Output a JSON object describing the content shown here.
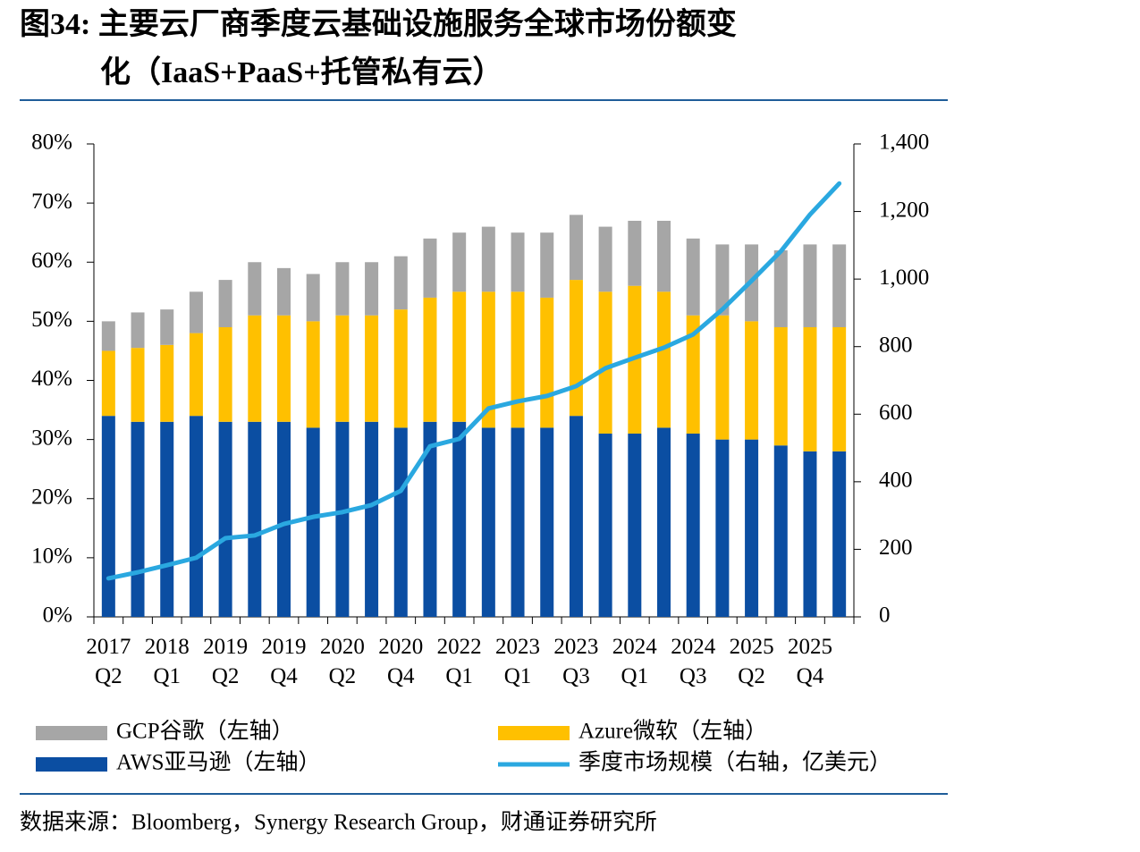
{
  "chart_data": {
    "type": "bar",
    "title": [
      "图34: 主要云厂商季度云基础设施服务全球市场份额变",
      "化（IaaS+PaaS+托管私有云）"
    ],
    "source": "数据来源：Bloomberg，Synergy Research Group，财通证券研究所",
    "categories": [
      "2017 Q2",
      null,
      "2018 Q1",
      null,
      "2019 Q2",
      null,
      "2019 Q4",
      null,
      "2020 Q2",
      null,
      "2020 Q4",
      null,
      "2022 Q1",
      null,
      "2023 Q1",
      null,
      "2023 Q3",
      null,
      "2024 Q1",
      null,
      "2024 Q3",
      null,
      "2025 Q2",
      null,
      "2025 Q4",
      null
    ],
    "series": [
      {
        "name": "AWS亚马逊（左轴）",
        "color": "#0b4ea2",
        "type": "bar",
        "values": [
          34,
          33,
          33,
          34,
          33,
          33,
          33,
          32,
          33,
          33,
          32,
          33,
          33,
          32,
          32,
          32,
          34,
          31,
          31,
          32,
          31,
          30,
          30,
          29,
          28,
          28
        ]
      },
      {
        "name": "Azure微软（左轴）",
        "color": "#ffc000",
        "type": "bar",
        "values": [
          11,
          12.5,
          13,
          14,
          16,
          18,
          18,
          18,
          18,
          18,
          20,
          21,
          22,
          23,
          23,
          22,
          23,
          24,
          25,
          23,
          20,
          21,
          20,
          20,
          21,
          21
        ]
      },
      {
        "name": "GCP谷歌（左轴）",
        "color": "#a6a6a6",
        "type": "bar",
        "values": [
          5,
          6,
          6,
          7,
          8,
          9,
          8,
          8,
          9,
          9,
          9,
          10,
          10,
          11,
          10,
          11,
          11,
          11,
          11,
          12,
          13,
          12,
          13,
          13,
          14,
          14
        ]
      },
      {
        "name": "季度市场规模（右轴，亿美元）",
        "color": "#2aa8e0",
        "type": "line",
        "axis": "y2",
        "values": [
          114,
          132,
          153,
          175,
          233,
          241,
          275,
          296,
          310,
          331,
          373,
          505,
          527,
          617,
          638,
          654,
          683,
          736,
          767,
          797,
          836,
          910,
          995,
          1082,
          1191,
          1283
        ]
      }
    ],
    "ylim": [
      0,
      80
    ],
    "yticks": [
      {
        "value": 0,
        "label": "0%"
      },
      {
        "value": 10,
        "label": "10%"
      },
      {
        "value": 20,
        "label": "20%"
      },
      {
        "value": 30,
        "label": "30%"
      },
      {
        "value": 40,
        "label": "40%"
      },
      {
        "value": 50,
        "label": "50%"
      },
      {
        "value": 60,
        "label": "60%"
      },
      {
        "value": 70,
        "label": "70%"
      },
      {
        "value": 80,
        "label": "80%"
      }
    ],
    "y2lim": [
      0,
      1400
    ],
    "y2ticks": [
      0,
      200,
      400,
      600,
      800,
      {
        "value": 1000,
        "label": "1,000"
      },
      {
        "value": 1200,
        "label": "1,200"
      },
      {
        "value": 1400,
        "label": "1,400"
      }
    ]
  }
}
